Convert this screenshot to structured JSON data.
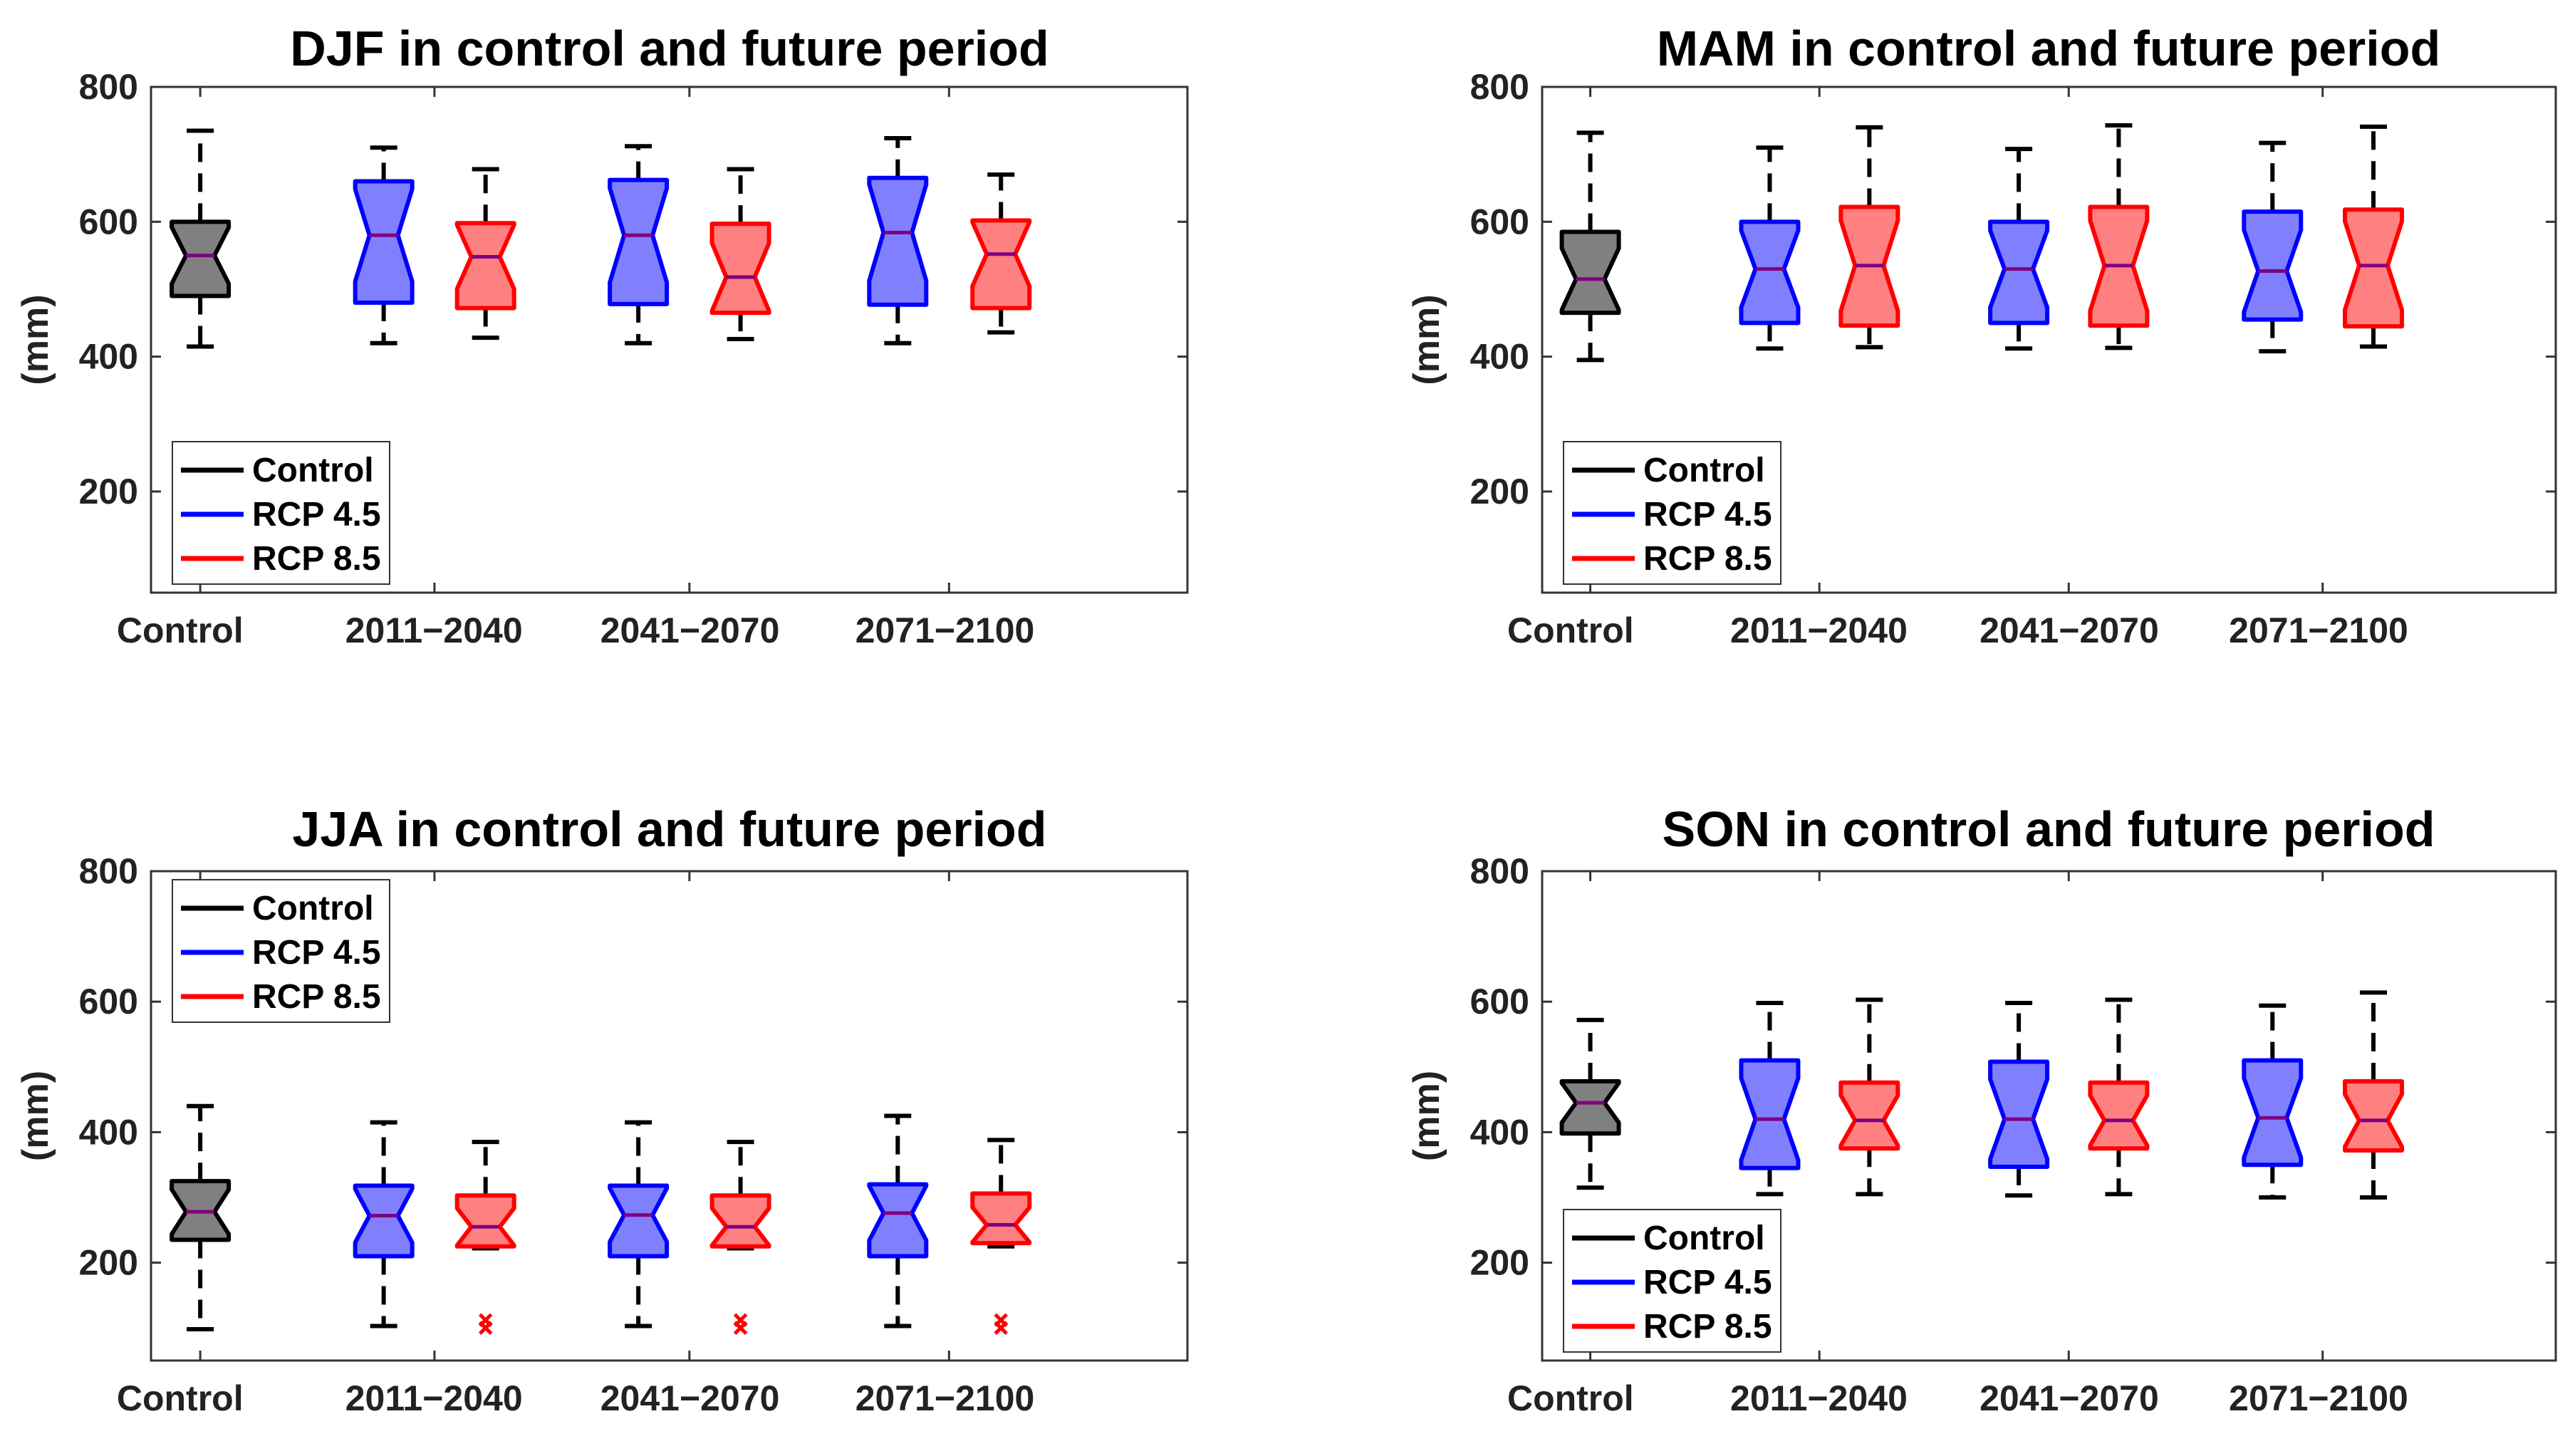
{
  "chart_data": [
    {
      "type": "boxplot",
      "title": "DJF in control and future period",
      "ylabel": "(mm)",
      "ylim": [
        50,
        800
      ],
      "yticks": [
        200,
        400,
        600,
        800
      ],
      "categories": [
        "Control",
        "2011−2040",
        "2041−2070",
        "2071−2100"
      ],
      "legend": {
        "position": "bottom-left",
        "entries": [
          "Control",
          "RCP 4.5",
          "RCP 8.5"
        ]
      },
      "boxes": [
        {
          "series": "Control",
          "category": "Control",
          "min": 415,
          "q1": 490,
          "median": 550,
          "q3": 600,
          "max": 735,
          "outliers": []
        },
        {
          "series": "RCP 4.5",
          "category": "2011−2040",
          "min": 420,
          "q1": 480,
          "median": 580,
          "q3": 660,
          "max": 710,
          "outliers": []
        },
        {
          "series": "RCP 8.5",
          "category": "2011−2040",
          "min": 428,
          "q1": 472,
          "median": 548,
          "q3": 598,
          "max": 678,
          "outliers": []
        },
        {
          "series": "RCP 4.5",
          "category": "2041−2070",
          "min": 420,
          "q1": 478,
          "median": 580,
          "q3": 662,
          "max": 712,
          "outliers": []
        },
        {
          "series": "RCP 8.5",
          "category": "2041−2070",
          "min": 426,
          "q1": 465,
          "median": 518,
          "q3": 597,
          "max": 678,
          "outliers": []
        },
        {
          "series": "RCP 4.5",
          "category": "2071−2100",
          "min": 420,
          "q1": 477,
          "median": 584,
          "q3": 665,
          "max": 724,
          "outliers": []
        },
        {
          "series": "RCP 8.5",
          "category": "2071−2100",
          "min": 436,
          "q1": 472,
          "median": 552,
          "q3": 602,
          "max": 670,
          "outliers": []
        }
      ]
    },
    {
      "type": "boxplot",
      "title": "MAM in control and future period",
      "ylabel": "(mm)",
      "ylim": [
        50,
        800
      ],
      "yticks": [
        200,
        400,
        600,
        800
      ],
      "categories": [
        "Control",
        "2011−2040",
        "2041−2070",
        "2071−2100"
      ],
      "legend": {
        "position": "bottom-left",
        "entries": [
          "Control",
          "RCP 4.5",
          "RCP 8.5"
        ]
      },
      "boxes": [
        {
          "series": "Control",
          "category": "Control",
          "min": 395,
          "q1": 465,
          "median": 515,
          "q3": 585,
          "max": 732,
          "outliers": []
        },
        {
          "series": "RCP 4.5",
          "category": "2011−2040",
          "min": 412,
          "q1": 450,
          "median": 530,
          "q3": 600,
          "max": 710,
          "outliers": []
        },
        {
          "series": "RCP 8.5",
          "category": "2011−2040",
          "min": 414,
          "q1": 446,
          "median": 535,
          "q3": 622,
          "max": 740,
          "outliers": []
        },
        {
          "series": "RCP 4.5",
          "category": "2041−2070",
          "min": 412,
          "q1": 450,
          "median": 530,
          "q3": 600,
          "max": 708,
          "outliers": []
        },
        {
          "series": "RCP 8.5",
          "category": "2041−2070",
          "min": 413,
          "q1": 446,
          "median": 535,
          "q3": 622,
          "max": 743,
          "outliers": []
        },
        {
          "series": "RCP 4.5",
          "category": "2071−2100",
          "min": 408,
          "q1": 455,
          "median": 527,
          "q3": 615,
          "max": 717,
          "outliers": []
        },
        {
          "series": "RCP 8.5",
          "category": "2071−2100",
          "min": 415,
          "q1": 445,
          "median": 535,
          "q3": 618,
          "max": 741,
          "outliers": []
        }
      ]
    },
    {
      "type": "boxplot",
      "title": "JJA in control and future period",
      "ylabel": "(mm)",
      "ylim": [
        50,
        800
      ],
      "yticks": [
        200,
        400,
        600,
        800
      ],
      "categories": [
        "Control",
        "2011−2040",
        "2041−2070",
        "2071−2100"
      ],
      "legend": {
        "position": "top-left",
        "entries": [
          "Control",
          "RCP 4.5",
          "RCP 8.5"
        ]
      },
      "boxes": [
        {
          "series": "Control",
          "category": "Control",
          "min": 98,
          "q1": 235,
          "median": 278,
          "q3": 325,
          "max": 440,
          "outliers": []
        },
        {
          "series": "RCP 4.5",
          "category": "2011−2040",
          "min": 103,
          "q1": 210,
          "median": 272,
          "q3": 318,
          "max": 415,
          "outliers": []
        },
        {
          "series": "RCP 8.5",
          "category": "2011−2040",
          "min": 222,
          "q1": 225,
          "median": 255,
          "q3": 303,
          "max": 385,
          "outliers": [
            100,
            112
          ]
        },
        {
          "series": "RCP 4.5",
          "category": "2041−2070",
          "min": 103,
          "q1": 210,
          "median": 273,
          "q3": 318,
          "max": 415,
          "outliers": []
        },
        {
          "series": "RCP 8.5",
          "category": "2041−2070",
          "min": 222,
          "q1": 225,
          "median": 255,
          "q3": 303,
          "max": 385,
          "outliers": [
            100,
            112
          ]
        },
        {
          "series": "RCP 4.5",
          "category": "2071−2100",
          "min": 103,
          "q1": 210,
          "median": 276,
          "q3": 320,
          "max": 425,
          "outliers": []
        },
        {
          "series": "RCP 8.5",
          "category": "2071−2100",
          "min": 225,
          "q1": 230,
          "median": 258,
          "q3": 306,
          "max": 388,
          "outliers": [
            100,
            112
          ]
        }
      ]
    },
    {
      "type": "boxplot",
      "title": "SON in control and future period",
      "ylabel": "(mm)",
      "ylim": [
        50,
        800
      ],
      "yticks": [
        200,
        400,
        600,
        800
      ],
      "categories": [
        "Control",
        "2011−2040",
        "2041−2070",
        "2071−2100"
      ],
      "legend": {
        "position": "bottom-left",
        "entries": [
          "Control",
          "RCP 4.5",
          "RCP 8.5"
        ]
      },
      "boxes": [
        {
          "series": "Control",
          "category": "Control",
          "min": 315,
          "q1": 398,
          "median": 445,
          "q3": 478,
          "max": 572,
          "outliers": []
        },
        {
          "series": "RCP 4.5",
          "category": "2011−2040",
          "min": 305,
          "q1": 345,
          "median": 420,
          "q3": 510,
          "max": 598,
          "outliers": []
        },
        {
          "series": "RCP 8.5",
          "category": "2011−2040",
          "min": 305,
          "q1": 375,
          "median": 418,
          "q3": 476,
          "max": 603,
          "outliers": []
        },
        {
          "series": "RCP 4.5",
          "category": "2041−2070",
          "min": 303,
          "q1": 347,
          "median": 420,
          "q3": 508,
          "max": 598,
          "outliers": []
        },
        {
          "series": "RCP 8.5",
          "category": "2041−2070",
          "min": 305,
          "q1": 375,
          "median": 418,
          "q3": 476,
          "max": 603,
          "outliers": []
        },
        {
          "series": "RCP 4.5",
          "category": "2071−2100",
          "min": 300,
          "q1": 350,
          "median": 422,
          "q3": 510,
          "max": 594,
          "outliers": []
        },
        {
          "series": "RCP 8.5",
          "category": "2071−2100",
          "min": 300,
          "q1": 372,
          "median": 418,
          "q3": 478,
          "max": 614,
          "outliers": []
        }
      ]
    }
  ],
  "colors": {
    "control_fill": "#808080",
    "control_line": "#000000",
    "rcp45_fill": "#8080ff",
    "rcp45_line": "#0000ff",
    "rcp85_fill": "#ff8080",
    "rcp85_line": "#ff0000",
    "median": "#800080",
    "axis": "#333333"
  }
}
